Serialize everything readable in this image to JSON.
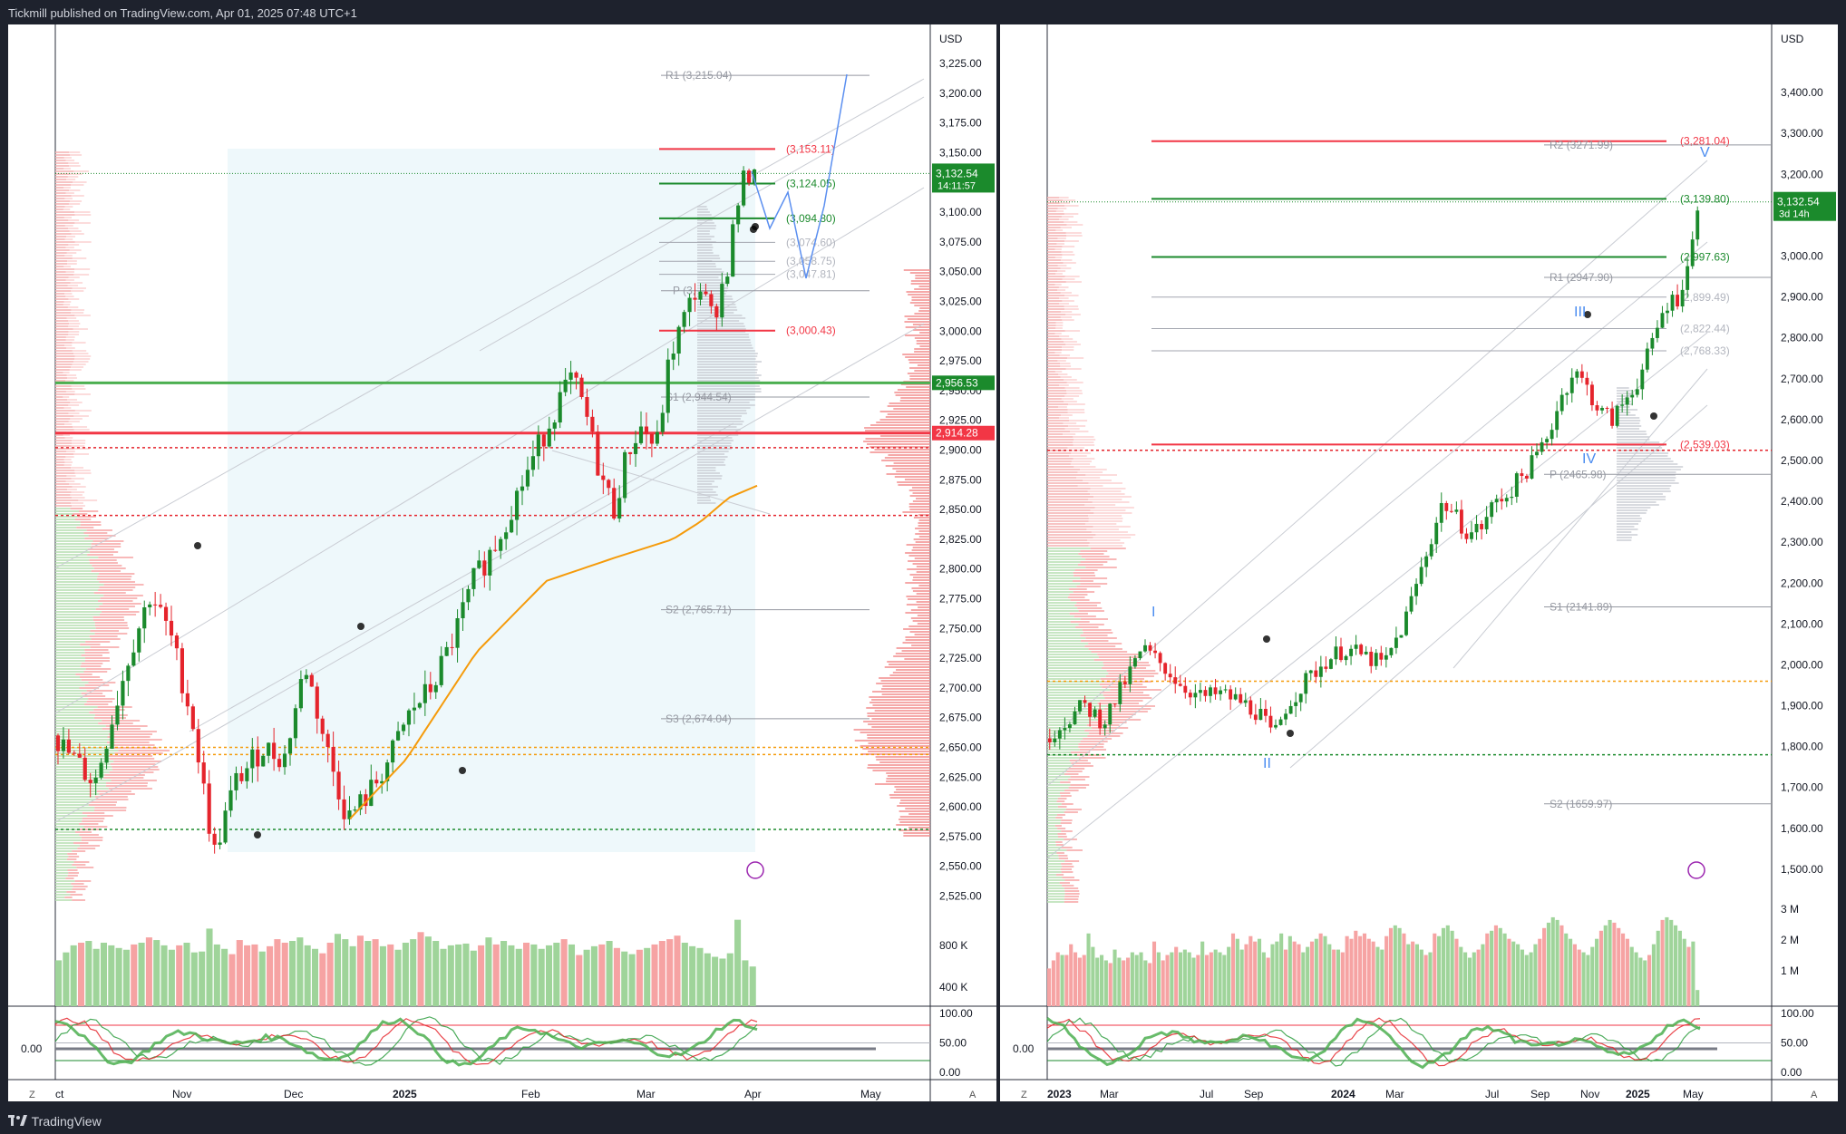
{
  "header": {
    "published_by": "Tickmill published on TradingView.com, Apr 01, 2025 07:48 UTC+1"
  },
  "footer": {
    "brand": "TradingView",
    "brand_icon": "tradingview-logo-icon"
  },
  "colors": {
    "up": "#26a69a",
    "up_candle": "#1b8a2c",
    "down_candle": "#e5242c",
    "resistance": "#f23645",
    "support_green": "#4caf50",
    "pivot_gray": "#787b86",
    "forecast_blue": "#5b8ff0",
    "ma_orange": "#f59b0b",
    "price_badge_green": "#1b8a2c",
    "price_badge_red": "#f23645",
    "wave_label": "#4a8cf0"
  },
  "left_chart": {
    "currency": "USD",
    "price_axis_labels": [
      "3,225.00",
      "3,200.00",
      "3,175.00",
      "3,150.00",
      "3,100.00",
      "3,075.00",
      "3,050.00",
      "3,025.00",
      "3,000.00",
      "2,975.00",
      "2,950.00",
      "2,925.00",
      "2,900.00",
      "2,875.00",
      "2,850.00",
      "2,825.00",
      "2,800.00",
      "2,775.00",
      "2,750.00",
      "2,725.00",
      "2,700.00",
      "2,675.00",
      "2,650.00",
      "2,625.00",
      "2,600.00",
      "2,575.00",
      "2,550.00",
      "2,525.00"
    ],
    "current_price": "3,132.54",
    "countdown": "14:11:57",
    "badge_green_line": "2,956.53",
    "badge_red_line": "2,914.28",
    "time_labels": [
      "ct",
      "Nov",
      "Dec",
      "2025",
      "Feb",
      "Mar",
      "Apr",
      "May"
    ],
    "pivot_labels": {
      "r1": "R1 (3,215.04)",
      "p": "P (3,",
      "s1": "S1 (2,944.54)",
      "s2": "S2 (2,765.71)",
      "s3": "S3 (2,674.04)"
    },
    "level_labels": {
      "l1": "(3,153.11)",
      "l2": "(3,124.05)",
      "l3": "(3,094.80)",
      "l4": "(3,074.60)",
      "l5": "(3,058.75)",
      "l6": "(3,047.81)",
      "l7": "(3,000.43)"
    },
    "volume_labels": [
      "800 K",
      "400 K"
    ],
    "osc_labels": [
      "100.00",
      "50.00",
      "0.00"
    ],
    "osc_left_value": "0.00",
    "corner_left": "Z",
    "corner_right": "A",
    "chart_data": {
      "type": "candlestick",
      "title": "",
      "y_range": [
        2520,
        3235
      ],
      "current_price": 3132.54,
      "horizontal_levels": [
        {
          "label": "(3,153.11)",
          "value": 3153.11,
          "color": "red"
        },
        {
          "label": "(3,124.05)",
          "value": 3124.05,
          "color": "green"
        },
        {
          "label": "(3,094.80)",
          "value": 3094.8,
          "color": "green"
        },
        {
          "label": "(3,074.60)",
          "value": 3074.6,
          "color": "gray"
        },
        {
          "label": "(3,058.75)",
          "value": 3058.75,
          "color": "gray"
        },
        {
          "label": "(3,047.81)",
          "value": 3047.81,
          "color": "gray"
        },
        {
          "label": "(3,000.43)",
          "value": 3000.43,
          "color": "red"
        },
        {
          "label": "2,956.53",
          "value": 2956.53,
          "color": "green"
        },
        {
          "label": "2,914.28",
          "value": 2914.28,
          "color": "red"
        }
      ],
      "pivots": [
        {
          "label": "R1",
          "value": 3215.04
        },
        {
          "label": "S1",
          "value": 2944.54
        },
        {
          "label": "S2",
          "value": 2765.71
        },
        {
          "label": "S3",
          "value": 2674.04
        }
      ],
      "path": [
        [
          0,
          2660
        ],
        [
          6,
          2620
        ],
        [
          11,
          2730
        ],
        [
          14,
          2780
        ],
        [
          17,
          2740
        ],
        [
          20,
          2670
        ],
        [
          23,
          2560
        ],
        [
          26,
          2620
        ],
        [
          30,
          2650
        ],
        [
          33,
          2640
        ],
        [
          36,
          2720
        ],
        [
          39,
          2650
        ],
        [
          42,
          2590
        ],
        [
          45,
          2610
        ],
        [
          48,
          2640
        ],
        [
          51,
          2680
        ],
        [
          54,
          2700
        ],
        [
          57,
          2740
        ],
        [
          60,
          2790
        ],
        [
          63,
          2820
        ],
        [
          66,
          2860
        ],
        [
          69,
          2900
        ],
        [
          72,
          2940
        ],
        [
          74,
          2960
        ],
        [
          76,
          2930
        ],
        [
          78,
          2880
        ],
        [
          80,
          2850
        ],
        [
          82,
          2900
        ],
        [
          84,
          2920
        ],
        [
          86,
          2900
        ],
        [
          88,
          2980
        ],
        [
          90,
          3010
        ],
        [
          92,
          3040
        ],
        [
          94,
          3010
        ],
        [
          96,
          3050
        ],
        [
          98,
          3120
        ],
        [
          100,
          3140
        ]
      ],
      "ma_path": [
        [
          42,
          2590
        ],
        [
          50,
          2640
        ],
        [
          60,
          2730
        ],
        [
          70,
          2790
        ],
        [
          80,
          2810
        ],
        [
          88,
          2825
        ],
        [
          92,
          2840
        ],
        [
          96,
          2860
        ],
        [
          100,
          2870
        ]
      ],
      "volume": [
        520,
        610,
        690,
        720,
        740,
        650,
        720,
        690,
        660,
        640,
        700,
        720,
        780,
        750,
        690,
        640,
        690,
        720,
        610,
        620,
        880,
        700,
        650,
        590,
        750,
        690,
        700,
        620,
        680,
        760,
        720,
        740,
        780,
        690,
        650,
        600,
        720,
        820,
        760,
        680,
        800,
        740,
        760,
        680,
        700,
        640,
        720,
        760,
        840,
        790,
        740,
        650,
        690,
        700,
        710,
        630,
        690,
        780,
        700,
        740,
        690,
        650,
        720,
        700,
        650,
        690,
        720,
        760,
        700,
        580,
        640,
        680,
        700,
        740,
        660,
        620,
        590,
        640,
        660,
        700,
        740,
        760,
        800,
        720,
        680,
        660,
        600,
        560,
        540,
        600,
        980,
        520,
        450
      ]
    }
  },
  "right_chart": {
    "currency": "USD",
    "price_axis_labels": [
      "3,400.00",
      "3,300.00",
      "3,200.00",
      "3,000.00",
      "2,900.00",
      "2,800.00",
      "2,700.00",
      "2,600.00",
      "2,500.00",
      "2,400.00",
      "2,300.00",
      "2,200.00",
      "2,100.00",
      "2,000.00",
      "1,900.00",
      "1,800.00",
      "1,700.00",
      "1,600.00",
      "1,500.00"
    ],
    "current_price": "3,132.54",
    "countdown": "3d 14h",
    "time_labels": [
      "2023",
      "Mar",
      "Jul",
      "Sep",
      "2024",
      "Mar",
      "Jul",
      "Sep",
      "Nov",
      "2025",
      "May"
    ],
    "pivot_labels": {
      "r2": "R2 (3271.99)",
      "r1": "R1 (2947.90)",
      "p": "P (2465.98)",
      "s1": "S1 (2141.89)",
      "s2": "S2 (1659.97)"
    },
    "level_labels": {
      "l1": "(3,281.04)",
      "l2": "(3,139.80)",
      "l3": "(2,997.63)",
      "l4": "(2,899.49)",
      "l5": "(2,822.44)",
      "l6": "(2,768.33)",
      "l7": "(2,539.03)"
    },
    "wave_labels": [
      "I",
      "II",
      "III",
      "IV",
      "V"
    ],
    "volume_labels": [
      "3 M",
      "2 M",
      "1 M"
    ],
    "osc_labels": [
      "100.00",
      "50.00",
      "0.00"
    ],
    "osc_left_value": "0.00",
    "corner_left": "Z",
    "corner_right": "A",
    "chart_data": {
      "type": "candlestick",
      "title": "",
      "y_range": [
        1420,
        3500
      ],
      "current_price": 3132.54,
      "horizontal_levels": [
        {
          "label": "(3,281.04)",
          "value": 3281.04,
          "color": "red"
        },
        {
          "label": "(3,139.80)",
          "value": 3139.8,
          "color": "green"
        },
        {
          "label": "(2,997.63)",
          "value": 2997.63,
          "color": "green"
        },
        {
          "label": "(2,899.49)",
          "value": 2899.49,
          "color": "gray"
        },
        {
          "label": "(2,822.44)",
          "value": 2822.44,
          "color": "gray"
        },
        {
          "label": "(2,768.33)",
          "value": 2768.33,
          "color": "gray"
        },
        {
          "label": "(2,539.03)",
          "value": 2539.03,
          "color": "red"
        }
      ],
      "pivots": [
        {
          "label": "R2",
          "value": 3271.99
        },
        {
          "label": "R1",
          "value": 2947.9
        },
        {
          "label": "P",
          "value": 2465.98
        },
        {
          "label": "S1",
          "value": 2141.89
        },
        {
          "label": "S2",
          "value": 1659.97
        }
      ],
      "path": [
        [
          0,
          1820
        ],
        [
          3,
          1860
        ],
        [
          6,
          1900
        ],
        [
          9,
          1860
        ],
        [
          12,
          1950
        ],
        [
          15,
          2040
        ],
        [
          18,
          2000
        ],
        [
          21,
          1950
        ],
        [
          24,
          1920
        ],
        [
          27,
          1930
        ],
        [
          30,
          1910
        ],
        [
          33,
          1880
        ],
        [
          35,
          1820
        ],
        [
          37,
          1900
        ],
        [
          40,
          1960
        ],
        [
          43,
          2010
        ],
        [
          46,
          2040
        ],
        [
          49,
          2020
        ],
        [
          52,
          2000
        ],
        [
          55,
          2100
        ],
        [
          57,
          2200
        ],
        [
          59,
          2300
        ],
        [
          61,
          2400
        ],
        [
          63,
          2360
        ],
        [
          65,
          2320
        ],
        [
          67,
          2340
        ],
        [
          69,
          2400
        ],
        [
          71,
          2420
        ],
        [
          73,
          2460
        ],
        [
          75,
          2500
        ],
        [
          77,
          2560
        ],
        [
          79,
          2650
        ],
        [
          81,
          2720
        ],
        [
          83,
          2680
        ],
        [
          85,
          2620
        ],
        [
          87,
          2600
        ],
        [
          89,
          2650
        ],
        [
          91,
          2700
        ],
        [
          93,
          2780
        ],
        [
          95,
          2880
        ],
        [
          97,
          2900
        ],
        [
          99,
          3000
        ],
        [
          100,
          3130
        ]
      ],
      "volume": [
        1400,
        1700,
        2000,
        1900,
        1900,
        2300,
        2000,
        1800,
        1900,
        2700,
        2200,
        1800,
        1900,
        1700,
        1600,
        2100,
        1800,
        1700,
        1800,
        2000,
        1900,
        2000,
        1700,
        1600,
        2400,
        2000,
        1700,
        1900,
        2000,
        2200,
        2000,
        2100,
        2000,
        1800,
        1900,
        2400,
        1900,
        2000,
        2100,
        2000,
        1900,
        2200,
        2700,
        2500,
        2100,
        2300,
        2600,
        2400,
        2500,
        2000,
        1800,
        2300,
        2400,
        2700,
        2100,
        2600,
        2400,
        2300,
        2000,
        2200,
        2400,
        2500,
        2700,
        2600,
        2300,
        2100,
        2100,
        2000,
        2600,
        2500,
        2800,
        2600,
        2700,
        2500,
        2400,
        2200,
        2100,
        2600,
        2900,
        3000,
        2900,
        2700,
        2300,
        2400,
        2300,
        2100,
        1900,
        2000,
        2700,
        2600,
        2900,
        3000,
        2800,
        2500,
        2200,
        2000,
        1800,
        2000,
        2100,
        2300,
        2700,
        2800,
        3000,
        2900,
        2700,
        2500,
        2400,
        2300,
        2100,
        1900,
        2000,
        2300,
        2500,
        2900,
        3100,
        3300,
        3200,
        3000,
        2700,
        2500,
        2300,
        2100,
        2000,
        1900,
        2200,
        2500,
        2800,
        3000,
        3200,
        3100,
        2900,
        2700,
        2500,
        2200,
        2000,
        1800,
        1700,
        1900,
        2300,
        2800,
        3200,
        3300,
        3200,
        3000,
        2800,
        2500,
        2200,
        2400,
        600
      ]
    }
  }
}
